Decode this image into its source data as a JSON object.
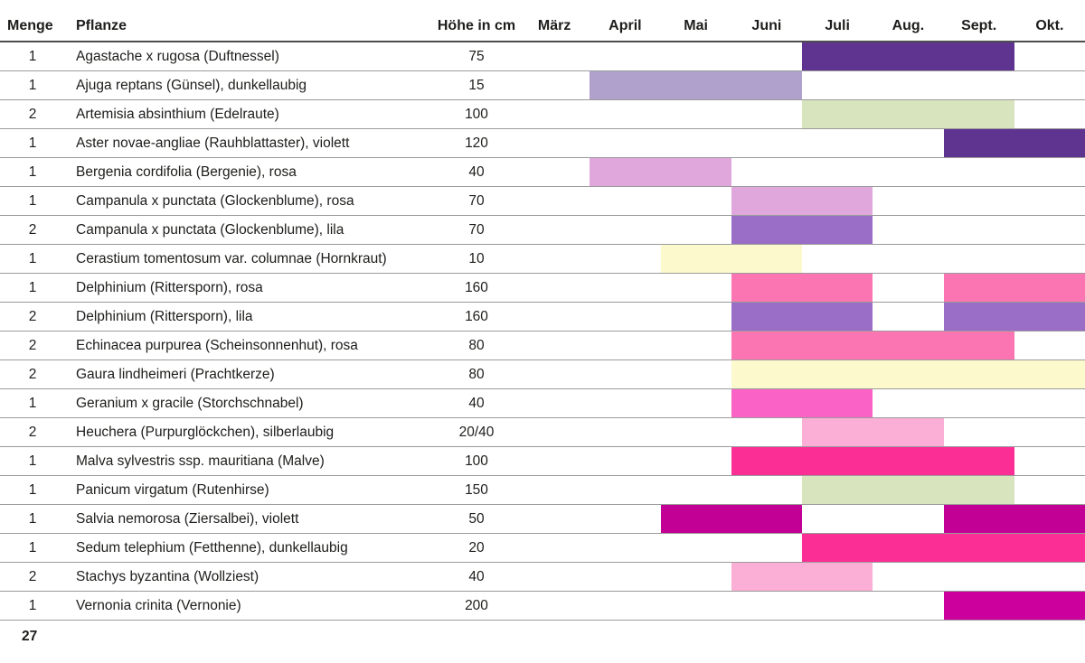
{
  "page_number": "27",
  "style": {
    "text_color": "#1d1d1b",
    "header_line_color": "#4d4d4d",
    "grid_line_color": "#9b9b9b",
    "background": "#ffffff"
  },
  "chart_data": {
    "type": "table",
    "subtype": "gantt-bloom-calendar",
    "columns": [
      "Menge",
      "Pflanze",
      "Höhe in cm"
    ],
    "months": [
      "März",
      "April",
      "Mai",
      "Juni",
      "Juli",
      "Aug.",
      "Sept.",
      "Okt."
    ],
    "rows": [
      {
        "menge": "1",
        "pflanze": "Agastache x rugosa (Duftnessel)",
        "hoehe": "75",
        "bloom": [
          {
            "from": "Juli",
            "to": "Sept.",
            "color": "#5f3390"
          }
        ]
      },
      {
        "menge": "1",
        "pflanze": "Ajuga reptans (Günsel), dunkellaubig",
        "hoehe": "15",
        "bloom": [
          {
            "from": "April",
            "to": "Juni",
            "color": "#afa1cb"
          }
        ]
      },
      {
        "menge": "2",
        "pflanze": "Artemisia absinthium (Edelraute)",
        "hoehe": "100",
        "bloom": [
          {
            "from": "Juli",
            "to": "Sept.",
            "color": "#d8e4bd"
          }
        ]
      },
      {
        "menge": "1",
        "pflanze": "Aster novae-angliae (Rauhblattaster), violett",
        "hoehe": "120",
        "bloom": [
          {
            "from": "Sept.",
            "to": "Okt.",
            "color": "#5f3390"
          }
        ]
      },
      {
        "menge": "1",
        "pflanze": "Bergenia cordifolia (Bergenie), rosa",
        "hoehe": "40",
        "bloom": [
          {
            "from": "April",
            "to": "Mai",
            "color": "#dfa7dc"
          }
        ]
      },
      {
        "menge": "1",
        "pflanze": "Campanula x punctata (Glockenblume), rosa",
        "hoehe": "70",
        "bloom": [
          {
            "from": "Juni",
            "to": "Juli",
            "color": "#dfa7dc"
          }
        ]
      },
      {
        "menge": "2",
        "pflanze": "Campanula x punctata (Glockenblume), lila",
        "hoehe": "70",
        "bloom": [
          {
            "from": "Juni",
            "to": "Juli",
            "color": "#9a6dc7"
          }
        ]
      },
      {
        "menge": "1",
        "pflanze": "Cerastium tomentosum var. columnae (Hornkraut)",
        "hoehe": "10",
        "bloom": [
          {
            "from": "Mai",
            "to": "Juni",
            "color": "#fcfacc"
          }
        ]
      },
      {
        "menge": "1",
        "pflanze": "Delphinium (Rittersporn), rosa",
        "hoehe": "160",
        "bloom": [
          {
            "from": "Juni",
            "to": "Juli",
            "color": "#fa75b2"
          },
          {
            "from": "Sept.",
            "to": "Okt.",
            "color": "#fa75b2"
          }
        ]
      },
      {
        "menge": "2",
        "pflanze": "Delphinium (Rittersporn), lila",
        "hoehe": "160",
        "bloom": [
          {
            "from": "Juni",
            "to": "Juli",
            "color": "#9a6dc7"
          },
          {
            "from": "Sept.",
            "to": "Okt.",
            "color": "#9a6dc7"
          }
        ]
      },
      {
        "menge": "2",
        "pflanze": "Echinacea purpurea (Scheinsonnenhut), rosa",
        "hoehe": "80",
        "bloom": [
          {
            "from": "Juni",
            "to": "Sept.",
            "color": "#fa75b2"
          }
        ]
      },
      {
        "menge": "2",
        "pflanze": "Gaura lindheimeri (Prachtkerze)",
        "hoehe": "80",
        "bloom": [
          {
            "from": "Juni",
            "to": "Okt.",
            "color": "#fcfacc"
          }
        ]
      },
      {
        "menge": "1",
        "pflanze": "Geranium x gracile (Storchschnabel)",
        "hoehe": "40",
        "bloom": [
          {
            "from": "Juni",
            "to": "Juli",
            "color": "#fa62c6"
          }
        ]
      },
      {
        "menge": "2",
        "pflanze": "Heuchera (Purpurglöckchen), silberlaubig",
        "hoehe": "20/40",
        "bloom": [
          {
            "from": "Juli",
            "to": "Aug.",
            "color": "#fbafd6"
          }
        ]
      },
      {
        "menge": "1",
        "pflanze": "Malva sylvestris ssp. mauritiana (Malve)",
        "hoehe": "100",
        "bloom": [
          {
            "from": "Juni",
            "to": "Sept.",
            "color": "#fb2e96"
          }
        ]
      },
      {
        "menge": "1",
        "pflanze": "Panicum virgatum (Rutenhirse)",
        "hoehe": "150",
        "bloom": [
          {
            "from": "Juli",
            "to": "Sept.",
            "color": "#d8e4bd"
          }
        ]
      },
      {
        "menge": "1",
        "pflanze": "Salvia nemorosa (Ziersalbei), violett",
        "hoehe": "50",
        "bloom": [
          {
            "from": "Mai",
            "to": "Juni",
            "color": "#c30095"
          },
          {
            "from": "Sept.",
            "to": "Okt.",
            "color": "#c30095"
          }
        ]
      },
      {
        "menge": "1",
        "pflanze": "Sedum telephium (Fetthenne), dunkellaubig",
        "hoehe": "20",
        "bloom": [
          {
            "from": "Juli",
            "to": "Okt.",
            "color": "#fb2e96"
          }
        ]
      },
      {
        "menge": "2",
        "pflanze": "Stachys byzantina (Wollziest)",
        "hoehe": "40",
        "bloom": [
          {
            "from": "Juni",
            "to": "Juli",
            "color": "#fbafd6"
          }
        ]
      },
      {
        "menge": "1",
        "pflanze": "Vernonia crinita (Vernonie)",
        "hoehe": "200",
        "bloom": [
          {
            "from": "Sept.",
            "to": "Okt.",
            "color": "#cc009c"
          }
        ]
      }
    ]
  }
}
